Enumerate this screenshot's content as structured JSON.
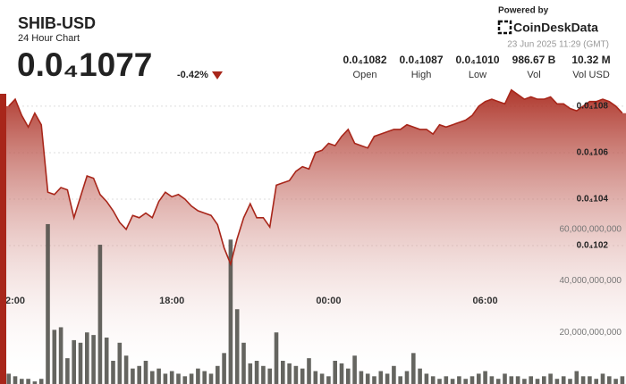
{
  "header": {
    "symbol": "SHIB-USD",
    "subtitle": "24 Hour Chart",
    "price": "0.0₄1077",
    "change": "-0.42%",
    "powered_by": "Powered by",
    "brand": "CoinDeskData",
    "timestamp": "23 Jun 2025 11:29 (GMT)",
    "stats": [
      {
        "value": "0.0₄1082",
        "label": "Open"
      },
      {
        "value": "0.0₄1087",
        "label": "High"
      },
      {
        "value": "0.0₄1010",
        "label": "Low"
      },
      {
        "value": "986.67 B",
        "label": "Vol"
      },
      {
        "value": "10.32 M",
        "label": "Vol USD"
      }
    ]
  },
  "chart_data": {
    "type": "area",
    "xlim": [
      0,
      94
    ],
    "xticks": [
      {
        "value": 1,
        "label": "2:00"
      },
      {
        "value": 25,
        "label": "18:00"
      },
      {
        "value": 49,
        "label": "00:00"
      },
      {
        "value": 73,
        "label": "06:00"
      }
    ],
    "ylim": [
      9.604e-06,
      1.0892e-05
    ],
    "yticks": [
      {
        "value": 1.02e-05,
        "label": "0.0₄102"
      },
      {
        "value": 1.04e-05,
        "label": "0.0₄104"
      },
      {
        "value": 1.06e-05,
        "label": "0.0₄106"
      },
      {
        "value": 1.08e-05,
        "label": "0.0₄108"
      }
    ],
    "y2lim": [
      0,
      116000000000
    ],
    "y2ticks": [
      {
        "value": 20000000000,
        "label": "20,000,000,000"
      },
      {
        "value": 40000000000,
        "label": "40,000,000,000"
      },
      {
        "value": 60000000000,
        "label": "60,000,000,000"
      }
    ],
    "grid": true,
    "series": [
      {
        "color": "#a8261a",
        "values": [
          1.08e-05,
          1.083e-05,
          1.076e-05,
          1.071e-05,
          1.077e-05,
          1.072e-05,
          1.043e-05,
          1.042e-05,
          1.045e-05,
          1.044e-05,
          1.032e-05,
          1.041e-05,
          1.05e-05,
          1.049e-05,
          1.042e-05,
          1.039e-05,
          1.035e-05,
          1.03e-05,
          1.027e-05,
          1.033e-05,
          1.032e-05,
          1.034e-05,
          1.032e-05,
          1.039e-05,
          1.043e-05,
          1.041e-05,
          1.042e-05,
          1.04e-05,
          1.037e-05,
          1.035e-05,
          1.034e-05,
          1.033e-05,
          1.029e-05,
          1.019e-05,
          1.012e-05,
          1.023e-05,
          1.032e-05,
          1.038e-05,
          1.032e-05,
          1.032e-05,
          1.028e-05,
          1.046e-05,
          1.047e-05,
          1.048e-05,
          1.052e-05,
          1.054e-05,
          1.053e-05,
          1.06e-05,
          1.061e-05,
          1.064e-05,
          1.063e-05,
          1.067e-05,
          1.07e-05,
          1.064e-05,
          1.063e-05,
          1.062e-05,
          1.067e-05,
          1.068e-05,
          1.069e-05,
          1.07e-05,
          1.07e-05,
          1.072e-05,
          1.071e-05,
          1.07e-05,
          1.07e-05,
          1.068e-05,
          1.072e-05,
          1.071e-05,
          1.072e-05,
          1.073e-05,
          1.074e-05,
          1.076e-05,
          1.08e-05,
          1.082e-05,
          1.083e-05,
          1.082e-05,
          1.081e-05,
          1.087e-05,
          1.085e-05,
          1.083e-05,
          1.084e-05,
          1.083e-05,
          1.083e-05,
          1.084e-05,
          1.081e-05,
          1.081e-05,
          1.079e-05,
          1.078e-05,
          1.08e-05,
          1.082e-05,
          1.082e-05,
          1.083e-05,
          1.082e-05,
          1.08e-05,
          1.077e-05
        ]
      },
      {
        "color": "#4a4a44",
        "axis": "y2",
        "values": [
          4000000000,
          3000000000,
          2000000000,
          2000000000,
          1000000000,
          2000000000,
          62000000000,
          21000000000,
          22000000000,
          10000000000,
          17000000000,
          16000000000,
          20000000000,
          19000000000,
          54000000000,
          18000000000,
          9000000000,
          16000000000,
          11000000000,
          6000000000,
          7000000000,
          9000000000,
          5000000000,
          6000000000,
          4000000000,
          5000000000,
          4000000000,
          3000000000,
          4000000000,
          6000000000,
          5000000000,
          4000000000,
          7000000000,
          12000000000,
          56000000000,
          29000000000,
          16000000000,
          8000000000,
          9000000000,
          7000000000,
          6000000000,
          20000000000,
          9000000000,
          8000000000,
          7000000000,
          6000000000,
          10000000000,
          5000000000,
          4000000000,
          3000000000,
          9000000000,
          8000000000,
          6000000000,
          11000000000,
          5000000000,
          4000000000,
          3000000000,
          5000000000,
          4000000000,
          7000000000,
          3000000000,
          5000000000,
          12000000000,
          6000000000,
          4000000000,
          3000000000,
          2000000000,
          3000000000,
          2000000000,
          3000000000,
          2000000000,
          3000000000,
          4000000000,
          5000000000,
          3000000000,
          2000000000,
          4000000000,
          3000000000,
          3000000000,
          2000000000,
          3000000000,
          2000000000,
          3000000000,
          4000000000,
          2000000000,
          3000000000,
          2000000000,
          5000000000,
          3000000000,
          3000000000,
          2000000000,
          4000000000,
          3000000000,
          2000000000,
          3000000000
        ]
      }
    ]
  }
}
